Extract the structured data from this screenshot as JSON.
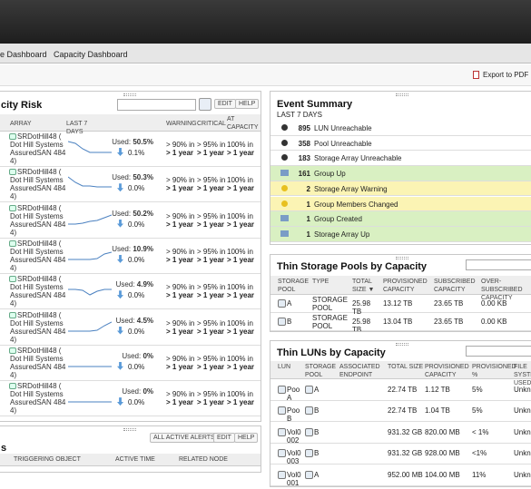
{
  "nav": {
    "tabs": [
      "e Dashboard",
      "Capacity Dashboard"
    ],
    "export": "Export to PDF"
  },
  "risk": {
    "title": "city Risk",
    "buttons": [
      "EDIT",
      "HELP"
    ],
    "columns": [
      "ARRAY",
      "LAST 7 DAYS",
      "WARNING",
      "CRITICAL",
      "AT CAPACITY"
    ],
    "used_label": "Used:",
    "rows": [
      {
        "array": [
          "SRDotHill48 (",
          "Dot Hill Systems",
          "AssuredSAN 484",
          "4)"
        ],
        "used": "50.5%",
        "change": "0.1%",
        "warning": [
          "> 90% in",
          "> 1 year"
        ],
        "critical": [
          "> 95% in",
          "> 1 year"
        ],
        "capacity": [
          "100% in",
          "> 1 year"
        ]
      },
      {
        "array": [
          "SRDotHill48 (",
          "Dot Hill Systems",
          "AssuredSAN 484",
          "4)"
        ],
        "used": "50.3%",
        "change": "0.0%",
        "warning": [
          "> 90% in",
          "> 1 year"
        ],
        "critical": [
          "> 95% in",
          "> 1 year"
        ],
        "capacity": [
          "100% in",
          "> 1 year"
        ]
      },
      {
        "array": [
          "SRDotHill48 (",
          "Dot Hill Systems",
          "AssuredSAN 484",
          "4)"
        ],
        "used": "50.2%",
        "change": "0.0%",
        "warning": [
          "> 90% in",
          "> 1 year"
        ],
        "critical": [
          "> 95% in",
          "> 1 year"
        ],
        "capacity": [
          "100% in",
          "> 1 year"
        ]
      },
      {
        "array": [
          "SRDotHill48 (",
          "Dot Hill Systems",
          "AssuredSAN 484",
          "4)"
        ],
        "used": "10.9%",
        "change": "0.0%",
        "warning": [
          "> 90% in",
          "> 1 year"
        ],
        "critical": [
          "> 95% in",
          "> 1 year"
        ],
        "capacity": [
          "100% in",
          "> 1 year"
        ]
      },
      {
        "array": [
          "SRDotHill48 (",
          "Dot Hill Systems",
          "AssuredSAN 484",
          "4)"
        ],
        "used": "4.9%",
        "change": "0.0%",
        "warning": [
          "> 90% in",
          "> 1 year"
        ],
        "critical": [
          "> 95% in",
          "> 1 year"
        ],
        "capacity": [
          "100% in",
          "> 1 year"
        ]
      },
      {
        "array": [
          "SRDotHill48 (",
          "Dot Hill Systems",
          "AssuredSAN 484",
          "4)"
        ],
        "used": "4.5%",
        "change": "0.0%",
        "warning": [
          "> 90% in",
          "> 1 year"
        ],
        "critical": [
          "> 95% in",
          "> 1 year"
        ],
        "capacity": [
          "100% in",
          "> 1 year"
        ]
      },
      {
        "array": [
          "SRDotHill48 (",
          "Dot Hill Systems",
          "AssuredSAN 484",
          "4)"
        ],
        "used": "0%",
        "change": "0.0%",
        "warning": [
          "> 90% in",
          "> 1 year"
        ],
        "critical": [
          "> 95% in",
          "> 1 year"
        ],
        "capacity": [
          "100% in",
          "> 1 year"
        ]
      },
      {
        "array": [
          "SRDotHill48 (",
          "Dot Hill Systems",
          "AssuredSAN 484",
          "4)"
        ],
        "used": "0%",
        "change": "0.0%",
        "warning": [
          "> 90% in",
          "> 1 year"
        ],
        "critical": [
          "> 95% in",
          "> 1 year"
        ],
        "capacity": [
          "100% in",
          "> 1 year"
        ]
      }
    ]
  },
  "alerts": {
    "title": "s",
    "buttons": [
      "ALL ACTIVE ALERTS",
      "EDIT",
      "HELP"
    ],
    "columns": [
      "TRIGGERING OBJECT",
      "ACTIVE TIME",
      "RELATED NODE"
    ]
  },
  "events": {
    "title": "Event Summary",
    "subtitle": "LAST 7 DAYS",
    "rows": [
      {
        "count": "895",
        "label": "LUN Unreachable",
        "color": "#ffffff"
      },
      {
        "count": "358",
        "label": "Pool Unreachable",
        "color": "#ffffff"
      },
      {
        "count": "183",
        "label": "Storage Array Unreachable",
        "color": "#ffffff"
      },
      {
        "count": "161",
        "label": "Group Up",
        "color": "#d9f0c2"
      },
      {
        "count": "2",
        "label": "Storage Array Warning",
        "color": "#fbf4b4"
      },
      {
        "count": "1",
        "label": "Group Members Changed",
        "color": "#fbf4b4"
      },
      {
        "count": "1",
        "label": "Group Created",
        "color": "#d9f0c2"
      },
      {
        "count": "1",
        "label": "Storage Array Up",
        "color": "#d9f0c2"
      }
    ]
  },
  "pools": {
    "title": "Thin Storage Pools by Capacity",
    "columns": [
      "STORAGE POOL",
      "TYPE",
      "TOTAL SIZE ▼",
      "PROVISIONED CAPACITY",
      "SUBSCRIBED CAPACITY",
      "OVER-SUBSCRIBED CAPACITY"
    ],
    "rows": [
      [
        "A",
        "STORAGE POOL",
        "25.98 TB",
        "13.12 TB",
        "23.65 TB",
        "0.00 KB"
      ],
      [
        "B",
        "STORAGE POOL",
        "25.98 TB",
        "13.04 TB",
        "23.65 TB",
        "0.00 KB"
      ]
    ]
  },
  "luns": {
    "title": "Thin LUNs by Capacity",
    "columns": [
      "LUN",
      "STORAGE POOL",
      "ASSOCIATED ENDPOINT",
      "TOTAL SIZE",
      "PROVISIONED CAPACITY",
      "PROVISIONED %",
      "FILE SYSTEM USED"
    ],
    "rows": [
      [
        "Poo A",
        "A",
        "",
        "22.74 TB",
        "1.12 TB",
        "5%",
        "Unkno"
      ],
      [
        "Poo B",
        "B",
        "",
        "22.74 TB",
        "1.04 TB",
        "5%",
        "Unkno"
      ],
      [
        "Vol0 002",
        "B",
        "",
        "931.32 GB",
        "820.00 MB",
        "< 1%",
        "Unkno"
      ],
      [
        "Vol0 003",
        "B",
        "",
        "931.32 GB",
        "928.00 MB",
        "<1%",
        "Unkno"
      ],
      [
        "Vol0 001",
        "A",
        "",
        "952.00 MB",
        "104.00 MB",
        "11%",
        "Unkno"
      ]
    ]
  }
}
